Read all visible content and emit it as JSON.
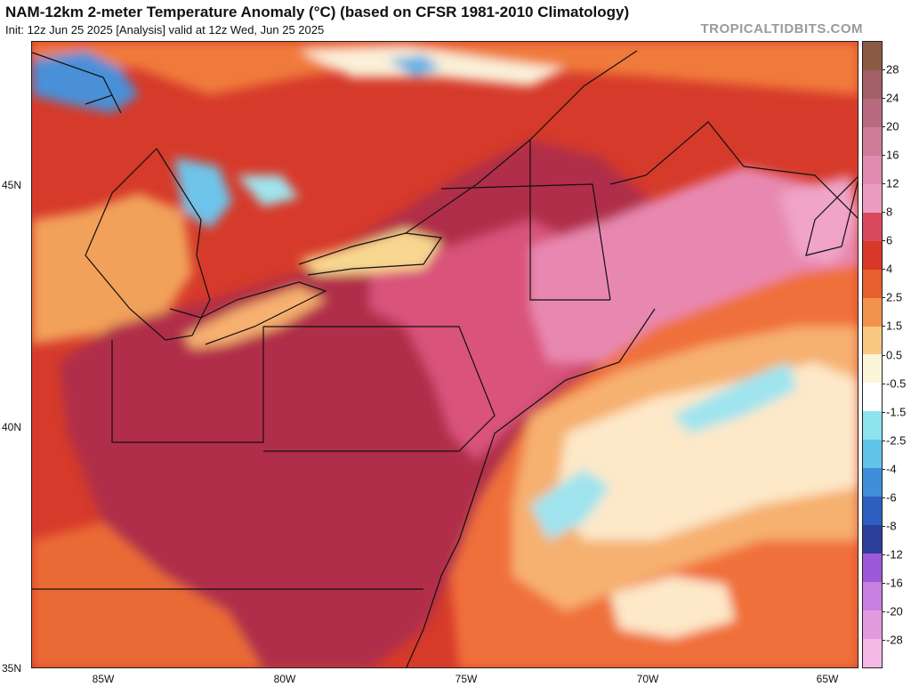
{
  "header": {
    "title": "NAM-12km 2-meter Temperature Anomaly (°C) (based on CFSR 1981-2010 Climatology)",
    "subtitle": "Init: 12z Jun 25 2025   [Analysis]    valid at 12z Wed, Jun 25 2025",
    "brand": "TROPICALTIDBITS.COM"
  },
  "map": {
    "lat_labels": [
      "45N",
      "40N",
      "35N"
    ],
    "lon_labels": [
      "85W",
      "80W",
      "75W",
      "70W",
      "65W"
    ]
  },
  "colorbar": {
    "labels": [
      "28",
      "24",
      "20",
      "16",
      "12",
      "8",
      "6",
      "4",
      "2.5",
      "1.5",
      "0.5",
      "-0.5",
      "-1.5",
      "-2.5",
      "-4",
      "-6",
      "-8",
      "-12",
      "-16",
      "-20",
      "-28"
    ],
    "colors": [
      "#8a5a45",
      "#a35f68",
      "#b86b80",
      "#cf7c99",
      "#e08ab0",
      "#ec9cc0",
      "#d94a5e",
      "#d73828",
      "#e8602d",
      "#f2934d",
      "#f8c883",
      "#fdf5da",
      "#ffffff",
      "#8ee3ee",
      "#5fc4e8",
      "#3f8ed9",
      "#2c5fbf",
      "#2c3f9a",
      "#9b59d9",
      "#c77fe0",
      "#e39be0",
      "#f3b8e6"
    ]
  }
}
